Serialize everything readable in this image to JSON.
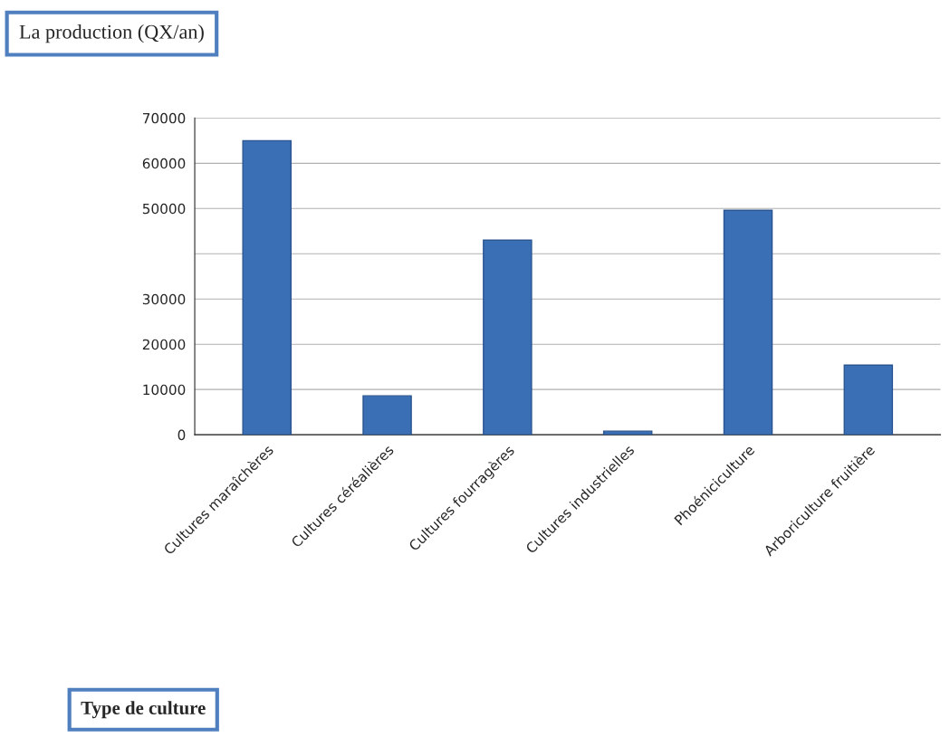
{
  "chart_data": {
    "type": "bar",
    "ylabel": "La production (QX/an)",
    "annotations": [
      "Type de culture"
    ],
    "categories": [
      "Cultures maraîchères",
      "Cultures céréalières",
      "Cultures fourragères",
      "Cultures industrielles",
      "Phoéniciculture",
      "Arboriculture fruitière"
    ],
    "values": [
      65000,
      8600,
      43000,
      800,
      49600,
      15400
    ],
    "color": "#3a6fb5",
    "ylim": [
      0,
      70000
    ],
    "yticks": [
      0,
      10000,
      20000,
      30000,
      {
        "value": 40000,
        "label": null
      },
      50000,
      60000,
      70000
    ],
    "grid": "y"
  }
}
